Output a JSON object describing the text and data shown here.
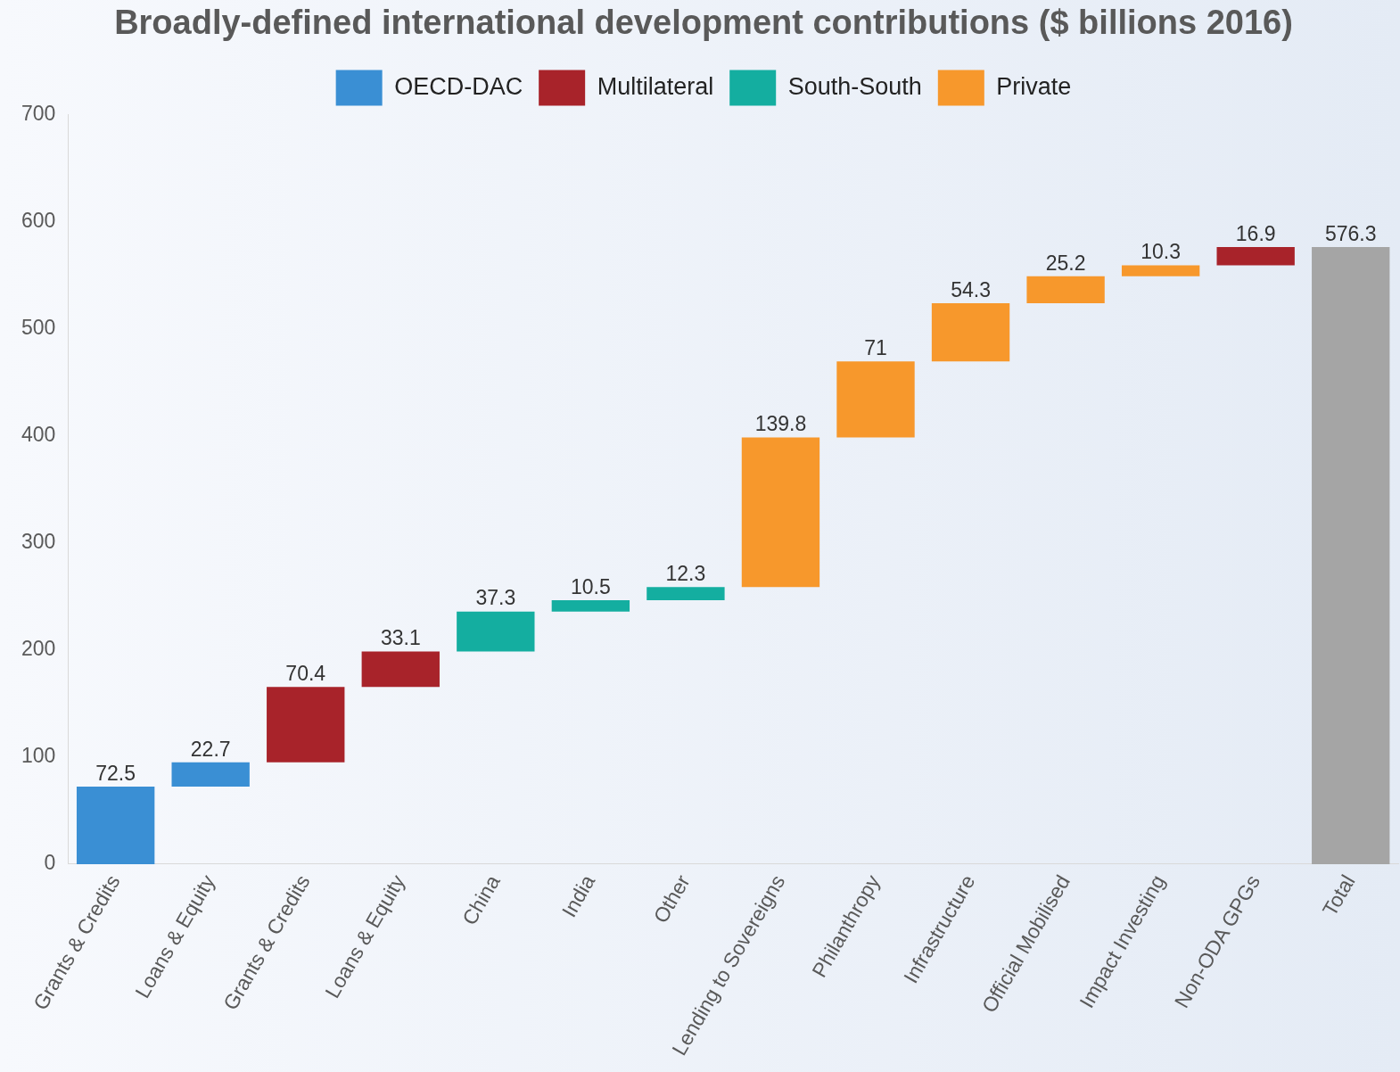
{
  "chart_data": {
    "type": "bar",
    "title": "Broadly-defined international development contributions ($ billions 2016)",
    "categories": [
      "Grants & Credits",
      "Loans & Equity",
      "Grants & Credits",
      "Loans & Equity",
      "China",
      "India",
      "Other",
      "Lending to Sovereigns",
      "Philanthropy",
      "Infrastructure",
      "Official Mobilised",
      "Impact Investing",
      "Non-ODA GPGs",
      "Total"
    ],
    "series": [
      {
        "name": "OECD-DAC",
        "color": "#3a8fd4",
        "base": [
          0,
          72.5,
          null,
          null,
          null,
          null,
          null,
          null,
          null,
          null,
          null,
          null,
          null,
          null
        ],
        "values": [
          72.5,
          22.7,
          null,
          null,
          null,
          null,
          null,
          null,
          null,
          null,
          null,
          null,
          null,
          null
        ]
      },
      {
        "name": "Multilateral",
        "color": "#a8232a",
        "base": [
          null,
          null,
          95.2,
          165.6,
          null,
          null,
          null,
          null,
          null,
          null,
          null,
          null,
          559.4,
          null
        ],
        "values": [
          null,
          null,
          70.4,
          33.1,
          null,
          null,
          null,
          null,
          null,
          null,
          null,
          null,
          16.9,
          null
        ]
      },
      {
        "name": "South-South",
        "color": "#14aea0",
        "base": [
          null,
          null,
          null,
          null,
          198.7,
          236,
          246.5,
          null,
          null,
          null,
          null,
          null,
          null,
          null
        ],
        "values": [
          null,
          null,
          null,
          null,
          37.3,
          10.5,
          12.3,
          null,
          null,
          null,
          null,
          null,
          null,
          null
        ]
      },
      {
        "name": "Private",
        "color": "#f7982c",
        "base": [
          null,
          null,
          null,
          null,
          null,
          null,
          null,
          258.8,
          398.6,
          469.6,
          523.9,
          549.1,
          null,
          null
        ],
        "values": [
          null,
          null,
          null,
          null,
          null,
          null,
          null,
          139.8,
          71,
          54.3,
          25.2,
          10.3,
          null,
          null
        ]
      },
      {
        "color": "#a5a5a5",
        "base": [
          null,
          null,
          null,
          null,
          null,
          null,
          null,
          null,
          null,
          null,
          null,
          null,
          null,
          0
        ],
        "values": [
          null,
          null,
          null,
          null,
          null,
          null,
          null,
          null,
          null,
          null,
          null,
          null,
          null,
          576.3
        ]
      }
    ],
    "ylim": [
      0,
      700
    ],
    "yticks": [
      0,
      100,
      200,
      300,
      400,
      500,
      600,
      700
    ],
    "grid": false,
    "legend": "top",
    "data_labels": true
  }
}
